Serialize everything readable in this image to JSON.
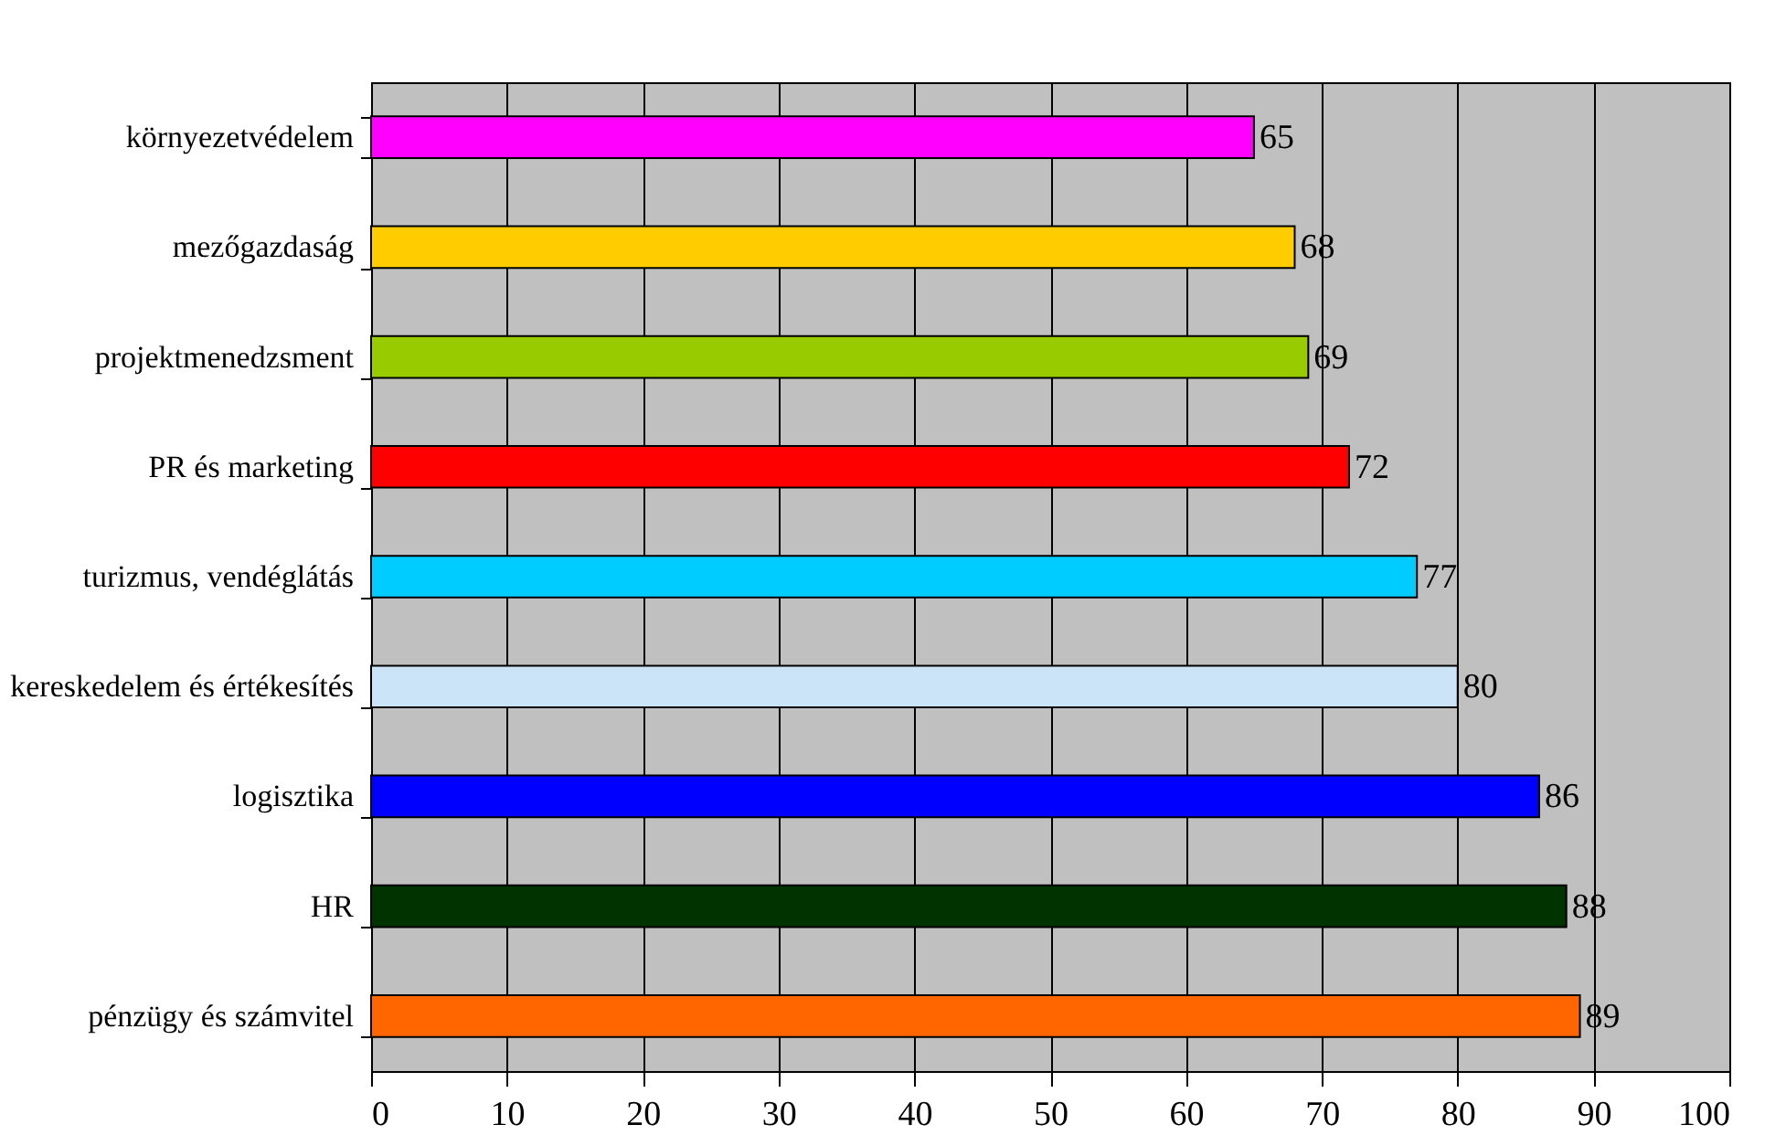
{
  "chart_data": {
    "type": "bar",
    "orientation": "horizontal",
    "categories": [
      "környezetvédelem",
      "mezőgazdaság",
      "projektmenedzsment",
      "PR és marketing",
      "turizmus, vendéglátás",
      "kereskedelem és értékesítés",
      "logisztika",
      "HR",
      "pénzügy és számvitel"
    ],
    "values": [
      65,
      68,
      69,
      72,
      77,
      80,
      86,
      88,
      89
    ],
    "colors": [
      "#ff00ff",
      "#ffcc00",
      "#99cc00",
      "#ff0000",
      "#00ccff",
      "#cce4f8",
      "#0000ff",
      "#003300",
      "#ff6600"
    ],
    "xlim": [
      0,
      100
    ],
    "xticks": [
      0,
      10,
      20,
      30,
      40,
      50,
      60,
      70,
      80,
      90,
      100
    ],
    "grid": "x",
    "data_labels": true
  }
}
